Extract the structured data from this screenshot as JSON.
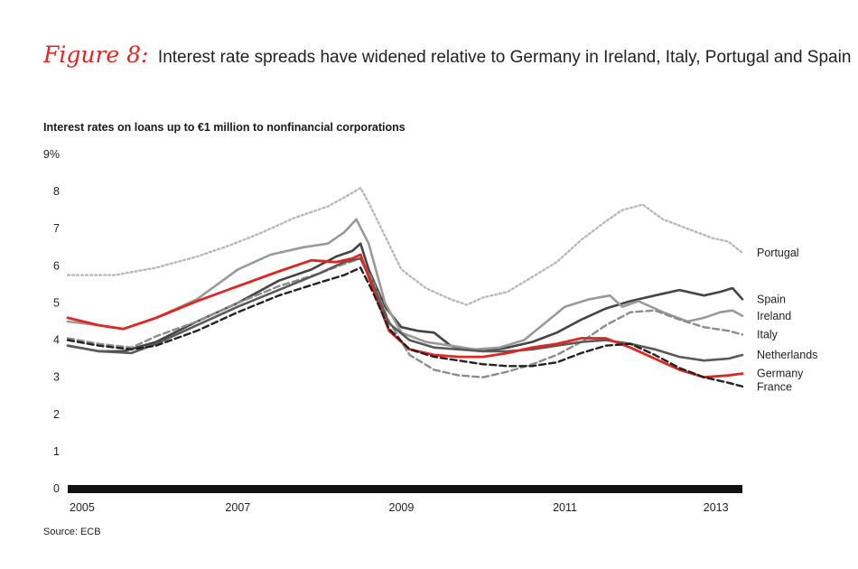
{
  "figure": {
    "label": "Figure 8:",
    "title": "Interest rate spreads have widened relative to Germany in Ireland, Italy, Portugal and Spain"
  },
  "source": "Source: ECB",
  "chart_data": {
    "type": "line",
    "title": "Interest rates on loans up to €1 million to nonfinancial corporations",
    "xlabel": "",
    "ylabel": "",
    "xlim": [
      2004.92,
      2013.17
    ],
    "ylim": [
      0,
      9
    ],
    "y_ticks": [
      "0",
      "1",
      "2",
      "3",
      "4",
      "5",
      "6",
      "7",
      "8",
      "9%"
    ],
    "x_ticks": [
      "2005",
      "2007",
      "2009",
      "2011",
      "2013"
    ],
    "x_tick_values": [
      2005,
      2007,
      2009,
      2011,
      2013
    ],
    "grid": false,
    "legend": "direct labels at right end of lines",
    "series": [
      {
        "name": "Portugal",
        "color": "#b8b8b8",
        "dash": "dotted",
        "width": 2.4,
        "x": [
          2004.92,
          2005.5,
          2006,
          2006.5,
          2006.9,
          2007.3,
          2007.7,
          2008.1,
          2008.35,
          2008.5,
          2008.6,
          2008.8,
          2009.0,
          2009.3,
          2009.6,
          2009.8,
          2010.0,
          2010.3,
          2010.6,
          2010.9,
          2011.2,
          2011.5,
          2011.7,
          2011.95,
          2012.2,
          2012.5,
          2012.8,
          2013.0,
          2013.17
        ],
        "y": [
          5.75,
          5.75,
          5.95,
          6.25,
          6.55,
          6.9,
          7.3,
          7.6,
          7.9,
          8.1,
          7.7,
          6.8,
          5.9,
          5.4,
          5.1,
          4.95,
          5.15,
          5.3,
          5.7,
          6.1,
          6.7,
          7.2,
          7.5,
          7.65,
          7.25,
          7.0,
          6.75,
          6.65,
          6.35
        ]
      },
      {
        "name": "Spain",
        "color": "#444444",
        "dash": "solid",
        "width": 2.6,
        "x": [
          2004.92,
          2005.3,
          2005.6,
          2006,
          2006.5,
          2007,
          2007.5,
          2007.9,
          2008.2,
          2008.4,
          2008.5,
          2008.6,
          2008.8,
          2009.0,
          2009.2,
          2009.4,
          2009.6,
          2009.8,
          2010.0,
          2010.3,
          2010.6,
          2010.9,
          2011.2,
          2011.5,
          2011.8,
          2012.1,
          2012.4,
          2012.7,
          2012.9,
          2013.05,
          2013.17
        ],
        "y": [
          3.85,
          3.7,
          3.7,
          3.95,
          4.5,
          5.0,
          5.6,
          5.9,
          6.25,
          6.4,
          6.6,
          5.9,
          4.9,
          4.35,
          4.25,
          4.2,
          3.85,
          3.75,
          3.7,
          3.8,
          3.95,
          4.2,
          4.55,
          4.85,
          5.05,
          5.2,
          5.35,
          5.2,
          5.3,
          5.4,
          5.1
        ]
      },
      {
        "name": "Ireland",
        "color": "#999999",
        "dash": "solid",
        "width": 2.6,
        "x": [
          2004.92,
          2005.3,
          2005.6,
          2006,
          2006.5,
          2007,
          2007.4,
          2007.8,
          2008.1,
          2008.3,
          2008.45,
          2008.6,
          2008.8,
          2009.0,
          2009.3,
          2009.6,
          2009.9,
          2010.2,
          2010.5,
          2010.75,
          2011.0,
          2011.3,
          2011.55,
          2011.7,
          2011.9,
          2012.2,
          2012.5,
          2012.7,
          2012.9,
          2013.05,
          2013.17
        ],
        "y": [
          4.5,
          4.4,
          4.3,
          4.6,
          5.1,
          5.9,
          6.3,
          6.5,
          6.6,
          6.9,
          7.25,
          6.6,
          5.0,
          4.2,
          3.95,
          3.85,
          3.75,
          3.8,
          4.0,
          4.45,
          4.9,
          5.1,
          5.2,
          4.9,
          5.05,
          4.75,
          4.5,
          4.6,
          4.75,
          4.8,
          4.65
        ]
      },
      {
        "name": "Italy",
        "color": "#8c8c8c",
        "dash": "dashed",
        "width": 2.4,
        "x": [
          2004.92,
          2005.3,
          2005.7,
          2006,
          2006.5,
          2007,
          2007.5,
          2008,
          2008.3,
          2008.5,
          2008.65,
          2008.85,
          2009.1,
          2009.4,
          2009.7,
          2010.0,
          2010.3,
          2010.6,
          2010.9,
          2011.2,
          2011.5,
          2011.8,
          2012.1,
          2012.4,
          2012.7,
          2013.0,
          2013.17
        ],
        "y": [
          4.05,
          3.9,
          3.8,
          4.1,
          4.5,
          5.0,
          5.45,
          5.8,
          6.05,
          6.2,
          5.6,
          4.5,
          3.6,
          3.2,
          3.05,
          3.0,
          3.15,
          3.35,
          3.6,
          3.95,
          4.4,
          4.75,
          4.8,
          4.55,
          4.35,
          4.25,
          4.15
        ]
      },
      {
        "name": "Netherlands",
        "color": "#5a5a5a",
        "dash": "solid",
        "width": 2.6,
        "x": [
          2004.92,
          2005.3,
          2005.7,
          2006,
          2006.5,
          2007,
          2007.5,
          2008,
          2008.3,
          2008.5,
          2008.65,
          2008.85,
          2009.1,
          2009.4,
          2009.7,
          2010.0,
          2010.3,
          2010.6,
          2010.9,
          2011.2,
          2011.5,
          2011.8,
          2012.1,
          2012.4,
          2012.7,
          2013.0,
          2013.17
        ],
        "y": [
          3.85,
          3.7,
          3.65,
          3.9,
          4.4,
          4.9,
          5.35,
          5.8,
          6.1,
          6.2,
          5.5,
          4.45,
          4.0,
          3.8,
          3.75,
          3.7,
          3.7,
          3.75,
          3.85,
          3.95,
          4.0,
          3.9,
          3.75,
          3.55,
          3.45,
          3.5,
          3.6
        ]
      },
      {
        "name": "Germany",
        "color": "#e0261f",
        "dash": "solid",
        "width": 2.8,
        "x": [
          2004.92,
          2005.3,
          2005.6,
          2006,
          2006.5,
          2007,
          2007.5,
          2007.9,
          2008.2,
          2008.4,
          2008.5,
          2008.65,
          2008.85,
          2009.1,
          2009.4,
          2009.7,
          2010.0,
          2010.3,
          2010.6,
          2010.9,
          2011.2,
          2011.5,
          2011.8,
          2012.1,
          2012.4,
          2012.7,
          2013.0,
          2013.17
        ],
        "y": [
          4.6,
          4.4,
          4.3,
          4.6,
          5.05,
          5.45,
          5.85,
          6.15,
          6.1,
          6.2,
          6.3,
          5.4,
          4.25,
          3.75,
          3.6,
          3.55,
          3.55,
          3.65,
          3.8,
          3.9,
          4.05,
          4.05,
          3.8,
          3.5,
          3.2,
          3.0,
          3.05,
          3.1
        ]
      },
      {
        "name": "France",
        "color": "#222222",
        "dash": "dashed",
        "width": 2.4,
        "x": [
          2004.92,
          2005.3,
          2005.7,
          2006,
          2006.5,
          2007,
          2007.5,
          2008,
          2008.3,
          2008.5,
          2008.65,
          2008.85,
          2009.1,
          2009.4,
          2009.7,
          2010.0,
          2010.3,
          2010.6,
          2010.9,
          2011.2,
          2011.5,
          2011.8,
          2012.1,
          2012.4,
          2012.7,
          2013.0,
          2013.17
        ],
        "y": [
          4.0,
          3.85,
          3.75,
          3.85,
          4.25,
          4.75,
          5.2,
          5.55,
          5.75,
          5.95,
          5.3,
          4.3,
          3.75,
          3.55,
          3.45,
          3.35,
          3.3,
          3.3,
          3.4,
          3.65,
          3.85,
          3.9,
          3.6,
          3.25,
          3.0,
          2.85,
          2.75
        ]
      }
    ]
  }
}
